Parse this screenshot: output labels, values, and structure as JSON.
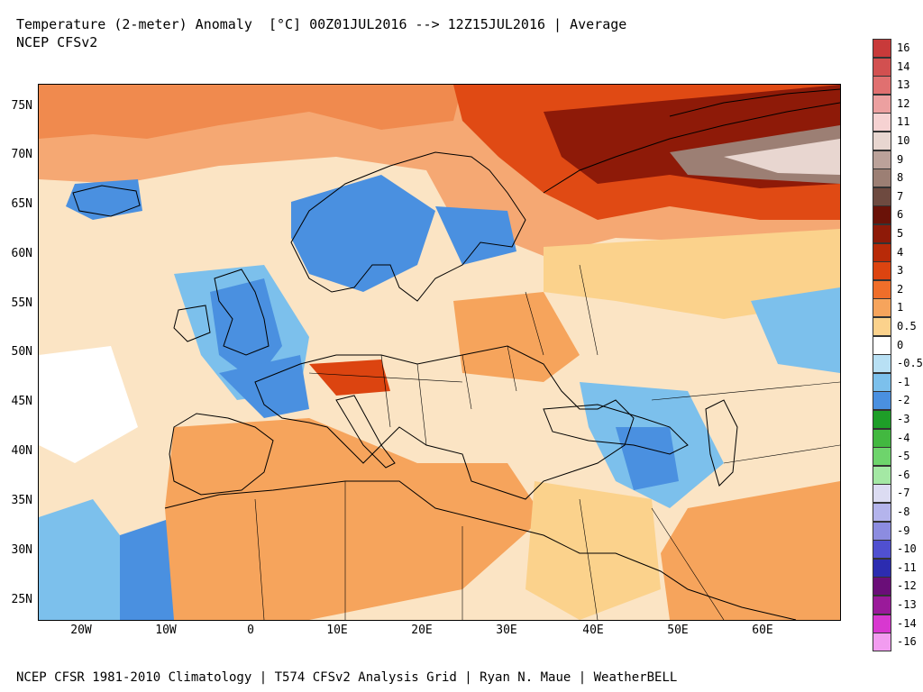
{
  "header": {
    "title": "Temperature (2-meter) Anomaly  [°C] 00Z01JUL2016 --> 12Z15JUL2016 | Average",
    "subtitle": "NCEP CFSv2"
  },
  "footer": {
    "credit": "NCEP CFSR 1981-2010 Climatology | T574 CFSv2 Analysis Grid | Ryan N. Maue | WeatherBELL"
  },
  "map": {
    "lat_labels": [
      "75N",
      "70N",
      "65N",
      "60N",
      "55N",
      "50N",
      "45N",
      "40N",
      "35N",
      "30N",
      "25N"
    ],
    "lon_labels": [
      "20W",
      "10W",
      "0",
      "10E",
      "20E",
      "30E",
      "40E",
      "50E",
      "60E"
    ]
  },
  "legend": {
    "labels": [
      "16",
      "14",
      "13",
      "12",
      "11",
      "10",
      "9",
      "8",
      "7",
      "6",
      "5",
      "4",
      "3",
      "2",
      "1",
      "0.5",
      "0",
      "-0.5",
      "-1",
      "-2",
      "-3",
      "-4",
      "-5",
      "-6",
      "-7",
      "-8",
      "-9",
      "-10",
      "-11",
      "-12",
      "-13",
      "-14",
      "-16"
    ],
    "colors": [
      "#c83a3a",
      "#d25050",
      "#e07070",
      "#eca0a0",
      "#f6d2d2",
      "#e8d6d0",
      "#bba29a",
      "#9c7f74",
      "#6e4a40",
      "#6a1208",
      "#8e1a08",
      "#b82a08",
      "#dc4410",
      "#ef6e2a",
      "#f6a45c",
      "#fbd28c",
      "#ffffff",
      "#b8e0f4",
      "#7cc0ec",
      "#4a90e0",
      "#1e9e28",
      "#42b840",
      "#6ed46c",
      "#a4e8a4",
      "#dcdcf2",
      "#b4b4ec",
      "#8c8ce0",
      "#5050d0",
      "#2c2cb0",
      "#6a0e78",
      "#9a1a9a",
      "#d838d0",
      "#f29cf0"
    ]
  }
}
